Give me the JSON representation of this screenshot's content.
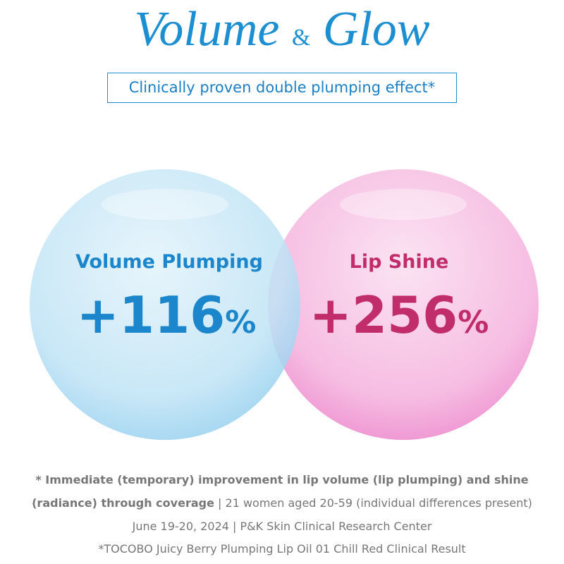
{
  "header": {
    "title_left": "Volume",
    "title_amp": "&",
    "title_right": "Glow",
    "subtitle": "Clinically proven double plumping effect*"
  },
  "stats": [
    {
      "label": "Volume Plumping",
      "value": "+116",
      "unit": "%"
    },
    {
      "label": "Lip Shine",
      "value": "+256",
      "unit": "%"
    }
  ],
  "footnotes": {
    "line1": "* Immediate (temporary) improvement in lip volume (lip plumping) and shine",
    "line2_bold": "(radiance) through coverage",
    "line2_regular": "| 21 women aged 20-59 (individual differences present)",
    "line3": "June 19-20, 2024 | P&K Skin Clinical Research Center",
    "line4": "*TOCOBO Juicy Berry Plumping Lip Oil 01 Chill Red Clinical Result"
  }
}
